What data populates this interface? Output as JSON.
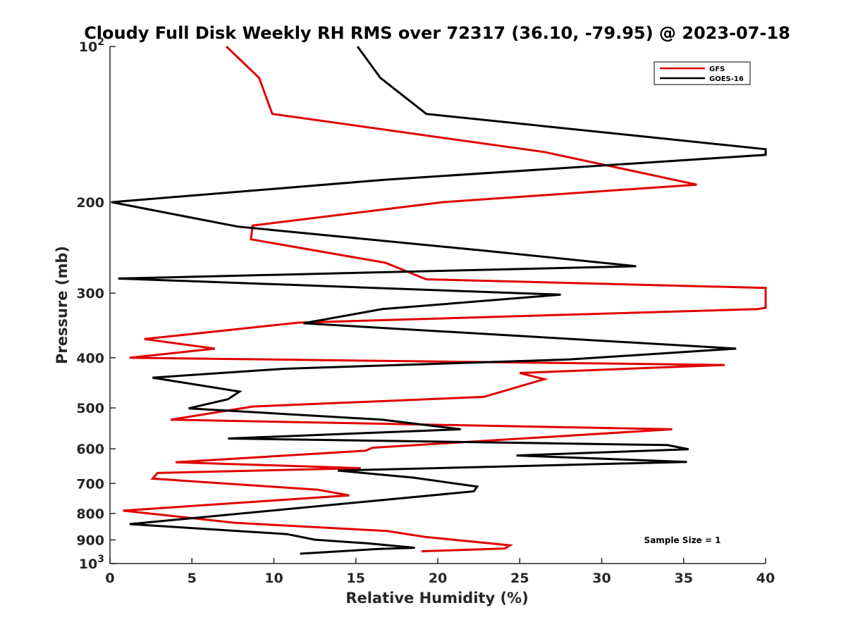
{
  "chart_data": {
    "type": "line",
    "title": "Cloudy Full Disk Weekly RH RMS over 72317 (36.10, -79.95) @ 2023-07-18",
    "xlabel": "Relative Humidity (%)",
    "ylabel": "Pressure (mb)",
    "xlim": [
      0,
      40
    ],
    "ylim": [
      100,
      1000
    ],
    "y_scale": "log",
    "y_reversed": true,
    "x_ticks": [
      "0",
      "5",
      "10",
      "15",
      "20",
      "25",
      "30",
      "35",
      "40"
    ],
    "y_ticks": [
      {
        "value": 100,
        "base": "10",
        "exp": "2"
      },
      {
        "value": 200,
        "text": "200"
      },
      {
        "value": 300,
        "text": "300"
      },
      {
        "value": 400,
        "text": "400"
      },
      {
        "value": 500,
        "text": "500"
      },
      {
        "value": 600,
        "text": "600"
      },
      {
        "value": 700,
        "text": "700"
      },
      {
        "value": 800,
        "text": "800"
      },
      {
        "value": 900,
        "text": "900"
      },
      {
        "value": 1000,
        "base": "10",
        "exp": "3"
      }
    ],
    "grid": false,
    "legend_position": "top-right",
    "series": [
      {
        "name": "GFS",
        "color": "#e00000",
        "points": [
          [
            7.1,
            100
          ],
          [
            9.1,
            115
          ],
          [
            9.9,
            135
          ],
          [
            26.5,
            160
          ],
          [
            35.8,
            185
          ],
          [
            20.3,
            200
          ],
          [
            8.7,
            222
          ],
          [
            8.6,
            236
          ],
          [
            16.8,
            262
          ],
          [
            19.3,
            282
          ],
          [
            40,
            293
          ],
          [
            40,
            320
          ],
          [
            39.5,
            322
          ],
          [
            11.5,
            342
          ],
          [
            2.1,
            368
          ],
          [
            6.4,
            384
          ],
          [
            1.2,
            400
          ],
          [
            37.5,
            413
          ],
          [
            25.0,
            428
          ],
          [
            26.5,
            440
          ],
          [
            22.8,
            476
          ],
          [
            8.7,
            497
          ],
          [
            3.7,
            527
          ],
          [
            34.3,
            550
          ],
          [
            16.0,
            597
          ],
          [
            15.6,
            605
          ],
          [
            4.0,
            637
          ],
          [
            15.3,
            654
          ],
          [
            2.9,
            668
          ],
          [
            2.6,
            685
          ],
          [
            12.7,
            720
          ],
          [
            14.6,
            738
          ],
          [
            0.8,
            790
          ],
          [
            7.6,
            834
          ],
          [
            16.9,
            865
          ],
          [
            19.2,
            888
          ],
          [
            24.4,
            922
          ],
          [
            24.1,
            935
          ],
          [
            19.0,
            947
          ]
        ]
      },
      {
        "name": "GOES-16",
        "color": "#000000",
        "points": [
          [
            15.1,
            100
          ],
          [
            16.5,
            115
          ],
          [
            19.3,
            135
          ],
          [
            40,
            158
          ],
          [
            40,
            162
          ],
          [
            16.8,
            181
          ],
          [
            0.1,
            200
          ],
          [
            7.8,
            223
          ],
          [
            22.7,
            248
          ],
          [
            32.1,
            266
          ],
          [
            0.5,
            281
          ],
          [
            27.5,
            302
          ],
          [
            16.6,
            322
          ],
          [
            11.8,
            343
          ],
          [
            38.2,
            384
          ],
          [
            28.0,
            403
          ],
          [
            10.6,
            420
          ],
          [
            2.6,
            437
          ],
          [
            7.9,
            465
          ],
          [
            7.2,
            481
          ],
          [
            4.8,
            501
          ],
          [
            16.6,
            527
          ],
          [
            21.4,
            550
          ],
          [
            7.2,
            573
          ],
          [
            34.0,
            590
          ],
          [
            35.3,
            601
          ],
          [
            24.8,
            618
          ],
          [
            35.2,
            636
          ],
          [
            13.9,
            661
          ],
          [
            18.5,
            682
          ],
          [
            22.4,
            710
          ],
          [
            22.2,
            725
          ],
          [
            1.2,
            839
          ],
          [
            10.8,
            877
          ],
          [
            12.5,
            899
          ],
          [
            15.7,
            914
          ],
          [
            18.6,
            932
          ],
          [
            16.4,
            937
          ],
          [
            11.6,
            957
          ]
        ]
      }
    ],
    "annotation": "Sample Size = 1"
  }
}
